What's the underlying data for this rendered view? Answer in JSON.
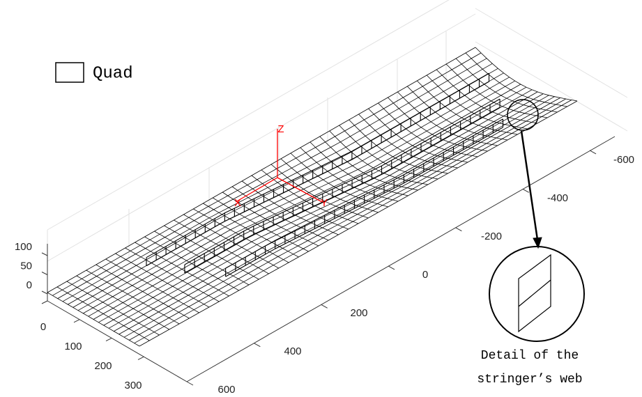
{
  "chart_data": {
    "type": "mesh3d",
    "legend": "Quad",
    "xticks": [
      0,
      100,
      200,
      300
    ],
    "yticks": [
      -600,
      -400,
      -200,
      0,
      200,
      400,
      600
    ],
    "zticks": [
      0,
      50,
      100
    ],
    "triad": [
      "X",
      "Y",
      "Z"
    ],
    "annotation": [
      "Detail of the",
      "stringer’s web"
    ],
    "color": "#000000",
    "triad_color": "#ff0000"
  }
}
